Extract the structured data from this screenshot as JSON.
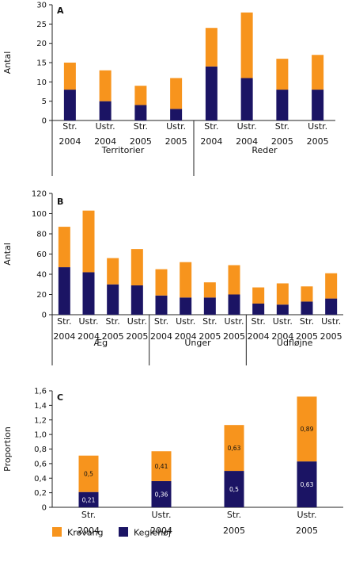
{
  "legend": {
    "items": [
      {
        "label": "Krovang",
        "color": "#f7941d"
      },
      {
        "label": "Keglehøj",
        "color": "#1b1464"
      }
    ]
  },
  "chart_data": [
    {
      "panel": "A",
      "type": "bar",
      "stacked": true,
      "ylabel": "Antal",
      "ylim": [
        0,
        30
      ],
      "yticks": [
        "0",
        "5",
        "10",
        "15",
        "20",
        "25",
        "30"
      ],
      "categories": [
        [
          "Str.",
          "2004"
        ],
        [
          "Ustr.",
          "2004"
        ],
        [
          "Str.",
          "2005"
        ],
        [
          "Ustr.",
          "2005"
        ],
        [
          "Str.",
          "2004"
        ],
        [
          "Ustr.",
          "2004"
        ],
        [
          "Str.",
          "2005"
        ],
        [
          "Ustr.",
          "2005"
        ]
      ],
      "groups": [
        {
          "label": "Territorier",
          "span": 4
        },
        {
          "label": "Reder",
          "span": 4
        }
      ],
      "series": [
        {
          "name": "Keglehøj",
          "values": [
            8,
            5,
            4,
            3,
            14,
            11,
            8,
            8
          ]
        },
        {
          "name": "Krovang",
          "values": [
            7,
            8,
            5,
            8,
            10,
            17,
            8,
            9
          ]
        }
      ]
    },
    {
      "panel": "B",
      "type": "bar",
      "stacked": true,
      "ylabel": "Antal",
      "ylim": [
        0,
        120
      ],
      "yticks": [
        "0",
        "20",
        "40",
        "60",
        "80",
        "100",
        "120"
      ],
      "categories": [
        [
          "Str.",
          "2004"
        ],
        [
          "Ustr.",
          "2004"
        ],
        [
          "Str.",
          "2005"
        ],
        [
          "Ustr.",
          "2005"
        ],
        [
          "Str.",
          "2004"
        ],
        [
          "Ustr.",
          "2004"
        ],
        [
          "Str.",
          "2005"
        ],
        [
          "Ustr.",
          "2005"
        ],
        [
          "Str.",
          "2004"
        ],
        [
          "Ustr.",
          "2004"
        ],
        [
          "Str.",
          "2005"
        ],
        [
          "Ustr.",
          "2005"
        ]
      ],
      "groups": [
        {
          "label": "Æg",
          "span": 4
        },
        {
          "label": "Unger",
          "span": 4
        },
        {
          "label": "Udfløjne",
          "span": 4
        }
      ],
      "series": [
        {
          "name": "Keglehøj",
          "values": [
            47,
            42,
            30,
            29,
            19,
            17,
            17,
            20,
            11,
            10,
            13,
            16
          ]
        },
        {
          "name": "Krovang",
          "values": [
            40,
            61,
            26,
            36,
            26,
            35,
            15,
            29,
            16,
            21,
            15,
            25
          ]
        }
      ]
    },
    {
      "panel": "C",
      "type": "bar",
      "stacked": true,
      "ylabel": "Proportion",
      "ylim": [
        0,
        1.6
      ],
      "yticks": [
        "0",
        "0,2",
        "0,4",
        "0,6",
        "0,8",
        "1,0",
        "1,2",
        "1,4",
        "1,6"
      ],
      "categories": [
        [
          "Str.",
          "2004"
        ],
        [
          "Ustr.",
          "2004"
        ],
        [
          "Str.",
          "2005"
        ],
        [
          "Ustr.",
          "2005"
        ]
      ],
      "series": [
        {
          "name": "Keglehøj",
          "values": [
            0.21,
            0.36,
            0.5,
            0.63
          ],
          "labels": [
            "0,21",
            "0,36",
            "0,5",
            "0,63"
          ]
        },
        {
          "name": "Krovang",
          "values": [
            0.5,
            0.41,
            0.63,
            0.89
          ],
          "labels": [
            "0,5",
            "0,41",
            "0,63",
            "0,89"
          ]
        }
      ]
    }
  ]
}
